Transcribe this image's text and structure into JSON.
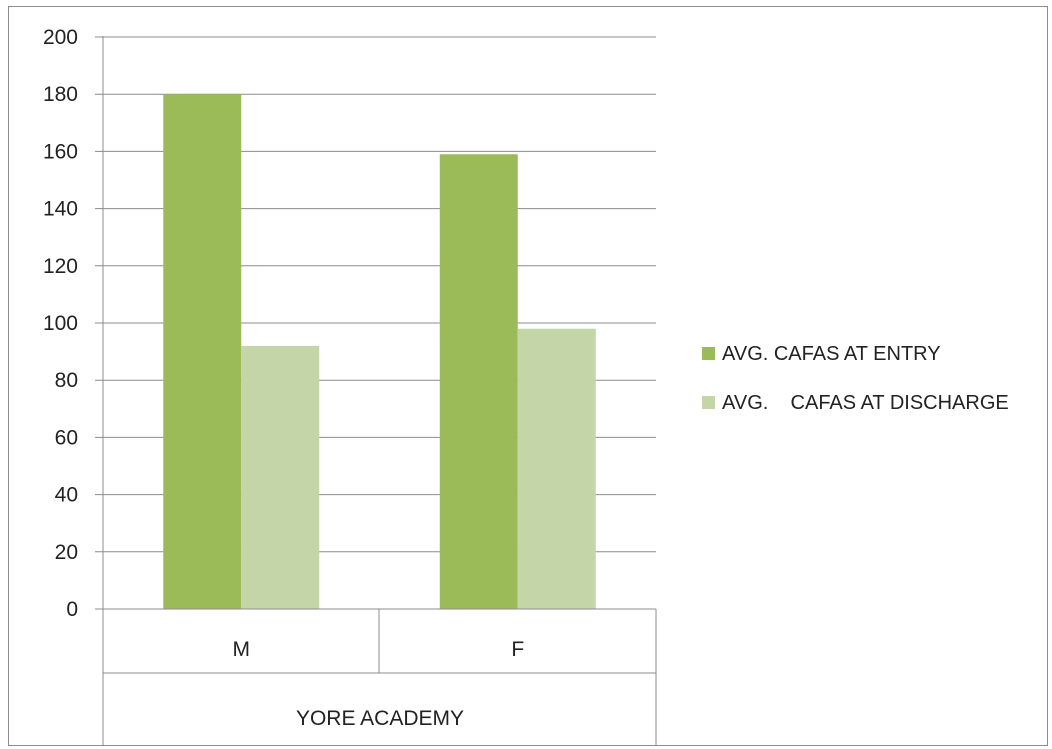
{
  "chart_data": {
    "type": "bar",
    "title": "",
    "xlabel": "",
    "ylabel": "",
    "group_label": "YORE ACADEMY",
    "categories": [
      "M",
      "F"
    ],
    "series": [
      {
        "name": "AVG. CAFAS AT ENTRY",
        "values": [
          180,
          159
        ],
        "color": "#9bbb59"
      },
      {
        "name": "AVG.    CAFAS AT DISCHARGE",
        "values": [
          92,
          98
        ],
        "color": "#c4d6a8"
      }
    ],
    "ylim": [
      0,
      200
    ],
    "yticks": [
      0,
      20,
      40,
      60,
      80,
      100,
      120,
      140,
      160,
      180,
      200
    ],
    "grid": true,
    "legend_position": "right"
  }
}
